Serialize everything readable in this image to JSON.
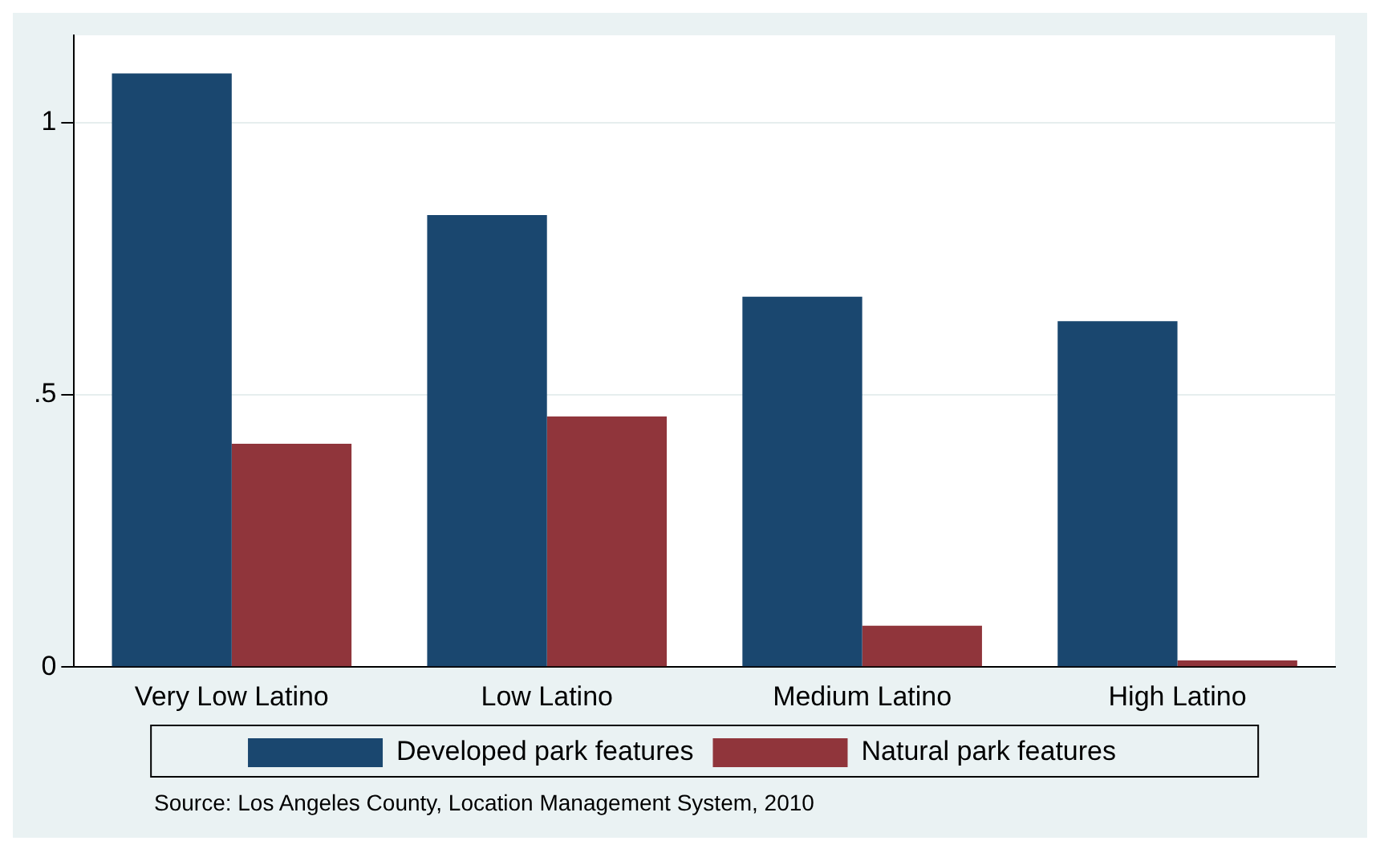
{
  "chart_data": {
    "type": "bar",
    "categories": [
      "Very Low Latino",
      "Low Latino",
      "Medium Latino",
      "High Latino"
    ],
    "series": [
      {
        "name": "Developed park features",
        "color": "#1a476f",
        "values": [
          1.09,
          0.83,
          0.68,
          0.635
        ]
      },
      {
        "name": "Natural park features",
        "color": "#90353b",
        "values": [
          0.41,
          0.46,
          0.076,
          0.012
        ]
      }
    ],
    "ylim": [
      0,
      1.16
    ],
    "yticks": [
      0,
      {
        "value": 0.5,
        "label": ".5"
      },
      1
    ],
    "grid": "y",
    "legend": "bottom",
    "annotations": [
      "Source: Los Angeles County, Location Management System, 2010"
    ]
  }
}
